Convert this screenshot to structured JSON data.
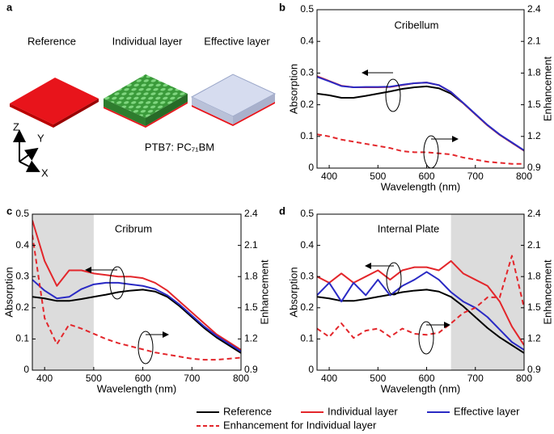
{
  "diagram": {
    "panel_label": "a",
    "labels": [
      "Reference",
      "Individual layer",
      "Effective layer"
    ],
    "material_label": "PTB7: PC₇₁BM",
    "axes": [
      "Z",
      "Y",
      "X"
    ]
  },
  "chart_data": [
    {
      "type": "line",
      "panel_label": "b",
      "annotation": "Cribellum",
      "x_label": "Wavelength (nm)",
      "y_label": "Absorption",
      "y2_label": "Enhancement",
      "x": [
        375,
        400,
        425,
        450,
        475,
        500,
        525,
        550,
        575,
        600,
        625,
        650,
        675,
        700,
        725,
        750,
        775,
        800
      ],
      "xlim": [
        375,
        800
      ],
      "xticks": [
        400,
        500,
        600,
        700,
        800
      ],
      "ylim": [
        0,
        0.5
      ],
      "yticks": [
        0,
        0.1,
        0.2,
        0.3,
        0.4,
        0.5
      ],
      "y2lim": [
        0.9,
        2.4
      ],
      "y2ticks": [
        0.9,
        1.2,
        1.5,
        1.8,
        2.1,
        2.4
      ],
      "series": [
        {
          "name": "Reference",
          "color": "#000000",
          "values": [
            0.235,
            0.23,
            0.222,
            0.222,
            0.228,
            0.235,
            0.242,
            0.25,
            0.255,
            0.258,
            0.252,
            0.235,
            0.205,
            0.17,
            0.135,
            0.105,
            0.08,
            0.055
          ]
        },
        {
          "name": "Individual layer",
          "color": "#e3262b",
          "values": [
            0.29,
            0.275,
            0.26,
            0.255,
            0.255,
            0.255,
            0.256,
            0.262,
            0.268,
            0.27,
            0.262,
            0.24,
            0.205,
            0.17,
            0.135,
            0.105,
            0.08,
            0.055
          ]
        },
        {
          "name": "Effective layer",
          "color": "#2a2ac4",
          "values": [
            0.288,
            0.274,
            0.259,
            0.255,
            0.256,
            0.256,
            0.257,
            0.263,
            0.268,
            0.27,
            0.262,
            0.24,
            0.206,
            0.171,
            0.136,
            0.106,
            0.081,
            0.056
          ]
        },
        {
          "name": "Enhancement for Individual layer",
          "color": "#e3262b",
          "dashed": true,
          "axis": "y2",
          "values": [
            1.22,
            1.2,
            1.17,
            1.15,
            1.13,
            1.11,
            1.09,
            1.06,
            1.05,
            1.05,
            1.04,
            1.03,
            1.0,
            0.98,
            0.96,
            0.95,
            0.94,
            0.94
          ]
        }
      ]
    },
    {
      "type": "line",
      "panel_label": "c",
      "annotation": "Cribrum",
      "x_label": "Wavelength (nm)",
      "y_label": "Absorption",
      "y2_label": "Enhancement",
      "highlight_range": [
        375,
        500
      ],
      "x": [
        375,
        400,
        425,
        450,
        475,
        500,
        525,
        550,
        575,
        600,
        625,
        650,
        675,
        700,
        725,
        750,
        775,
        800
      ],
      "xlim": [
        375,
        800
      ],
      "xticks": [
        400,
        500,
        600,
        700,
        800
      ],
      "ylim": [
        0,
        0.5
      ],
      "yticks": [
        0,
        0.1,
        0.2,
        0.3,
        0.4,
        0.5
      ],
      "y2lim": [
        0.9,
        2.4
      ],
      "y2ticks": [
        0.9,
        1.2,
        1.5,
        1.8,
        2.1,
        2.4
      ],
      "series": [
        {
          "name": "Reference",
          "color": "#000000",
          "values": [
            0.235,
            0.23,
            0.222,
            0.222,
            0.228,
            0.235,
            0.242,
            0.25,
            0.255,
            0.258,
            0.252,
            0.235,
            0.205,
            0.17,
            0.135,
            0.105,
            0.08,
            0.055
          ]
        },
        {
          "name": "Individual layer",
          "color": "#e3262b",
          "values": [
            0.48,
            0.35,
            0.27,
            0.32,
            0.32,
            0.31,
            0.305,
            0.3,
            0.3,
            0.295,
            0.28,
            0.255,
            0.22,
            0.185,
            0.15,
            0.115,
            0.09,
            0.065
          ]
        },
        {
          "name": "Effective layer",
          "color": "#2a2ac4",
          "values": [
            0.29,
            0.255,
            0.23,
            0.235,
            0.26,
            0.275,
            0.28,
            0.28,
            0.275,
            0.27,
            0.26,
            0.24,
            0.21,
            0.175,
            0.14,
            0.11,
            0.085,
            0.06
          ]
        },
        {
          "name": "Enhancement for Individual layer",
          "color": "#e3262b",
          "dashed": true,
          "axis": "y2",
          "values": [
            2.2,
            1.4,
            1.15,
            1.34,
            1.3,
            1.25,
            1.2,
            1.16,
            1.13,
            1.1,
            1.07,
            1.05,
            1.03,
            1.01,
            1.0,
            1.0,
            1.01,
            1.02
          ]
        }
      ]
    },
    {
      "type": "line",
      "panel_label": "d",
      "annotation": "Internal Plate",
      "x_label": "Wavelength (nm)",
      "y_label": "Absorption",
      "y2_label": "Enhancement",
      "highlight_range": [
        650,
        800
      ],
      "x": [
        375,
        400,
        425,
        450,
        475,
        500,
        525,
        550,
        575,
        600,
        625,
        650,
        675,
        700,
        725,
        750,
        775,
        800
      ],
      "xlim": [
        375,
        800
      ],
      "xticks": [
        400,
        500,
        600,
        700,
        800
      ],
      "ylim": [
        0,
        0.5
      ],
      "yticks": [
        0,
        0.1,
        0.2,
        0.3,
        0.4,
        0.5
      ],
      "y2lim": [
        0.9,
        2.4
      ],
      "y2ticks": [
        0.9,
        1.2,
        1.5,
        1.8,
        2.1,
        2.4
      ],
      "series": [
        {
          "name": "Reference",
          "color": "#000000",
          "values": [
            0.235,
            0.23,
            0.222,
            0.222,
            0.228,
            0.235,
            0.242,
            0.25,
            0.255,
            0.258,
            0.252,
            0.235,
            0.205,
            0.17,
            0.135,
            0.105,
            0.08,
            0.055
          ]
        },
        {
          "name": "Individual layer",
          "color": "#e3262b",
          "values": [
            0.3,
            0.28,
            0.31,
            0.28,
            0.3,
            0.32,
            0.29,
            0.32,
            0.33,
            0.33,
            0.32,
            0.35,
            0.31,
            0.29,
            0.27,
            0.22,
            0.14,
            0.08
          ]
        },
        {
          "name": "Effective layer",
          "color": "#2a2ac4",
          "values": [
            0.24,
            0.28,
            0.22,
            0.28,
            0.24,
            0.29,
            0.24,
            0.27,
            0.29,
            0.315,
            0.29,
            0.25,
            0.22,
            0.2,
            0.17,
            0.13,
            0.09,
            0.065
          ]
        },
        {
          "name": "Enhancement for Individual layer",
          "color": "#e3262b",
          "dashed": true,
          "axis": "y2",
          "values": [
            1.3,
            1.22,
            1.35,
            1.21,
            1.28,
            1.3,
            1.22,
            1.3,
            1.25,
            1.24,
            1.26,
            1.35,
            1.45,
            1.5,
            1.6,
            1.6,
            2.0,
            1.5
          ]
        }
      ]
    }
  ]
}
